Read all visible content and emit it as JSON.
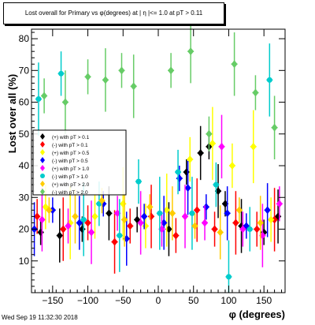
{
  "title": "Lost overall for Primary vs φ(degrees) at | η |<= 1.0 at pT > 0.11",
  "timestamp": "Wed Sep 19 11:32:30 2018",
  "chart_data": {
    "type": "scatter",
    "xlabel": "φ (degrees)",
    "ylabel": "Lost over all (%)",
    "xlim": [
      -180,
      180
    ],
    "ylim": [
      0,
      83
    ],
    "x_ticks": [
      -150,
      -100,
      -50,
      0,
      50,
      100,
      150
    ],
    "y_ticks": [
      10,
      20,
      30,
      40,
      50,
      60,
      70,
      80
    ],
    "grid": false,
    "legend_position": "left",
    "series": [
      {
        "name": "(+) with pT > 0.1",
        "color": "#000000",
        "marker": "diamond",
        "x": [
          -167,
          -140,
          -108,
          -70,
          -30,
          15,
          40,
          60,
          72,
          85,
          95,
          118,
          150,
          170
        ],
        "y": [
          19,
          18,
          20,
          25,
          23,
          20,
          38,
          44,
          46,
          32,
          28,
          21,
          19,
          24
        ]
      },
      {
        "name": "(-) with pT > 0.1",
        "color": "#ff0000",
        "marker": "diamond",
        "x": [
          -172,
          -135,
          -100,
          -62,
          -40,
          -10,
          25,
          55,
          80,
          110,
          140,
          165
        ],
        "y": [
          24,
          20,
          22,
          16,
          21,
          24,
          18,
          26,
          20,
          22,
          20,
          23
        ]
      },
      {
        "name": "(+) with pT > 0.5",
        "color": "#ffff00",
        "marker": "diamond",
        "x": [
          -160,
          -125,
          -90,
          -50,
          -18,
          12,
          45,
          77,
          105,
          135,
          160
        ],
        "y": [
          27,
          22,
          24,
          28,
          21,
          26,
          42,
          47,
          40,
          46,
          23
        ]
      },
      {
        "name": "(-) with pT > 0.5",
        "color": "#0000ff",
        "marker": "diamond",
        "x": [
          -176,
          -150,
          -112,
          -78,
          -45,
          -20,
          8,
          30,
          42,
          68,
          98,
          125,
          155
        ],
        "y": [
          20,
          26,
          22,
          28,
          17,
          24,
          22,
          36,
          33,
          27,
          25,
          21,
          26
        ]
      },
      {
        "name": "(+) with pT > 1.0",
        "color": "#ff00ff",
        "marker": "diamond",
        "x": [
          -165,
          -128,
          -95,
          -58,
          -25,
          5,
          38,
          66,
          90,
          120,
          148,
          172
        ],
        "y": [
          23,
          21,
          19,
          25,
          22,
          20,
          24,
          22,
          46,
          20,
          18,
          28
        ]
      },
      {
        "name": "(-) with pT > 1.0",
        "color": "#00cccc",
        "marker": "circle",
        "x": [
          -170,
          -138,
          -106,
          -84,
          -55,
          -28,
          2,
          28,
          48,
          82,
          100,
          130,
          158
        ],
        "y": [
          61,
          69,
          23,
          28,
          18,
          35,
          25,
          38,
          25,
          34,
          5,
          20,
          67
        ]
      },
      {
        "name": "(+) with pT > 2.0",
        "color": "#ffcc00",
        "marker": "diamond",
        "x": [
          -155,
          -118,
          -80,
          -48,
          -12,
          20,
          52,
          88,
          115,
          145
        ],
        "y": [
          26,
          24,
          29,
          23,
          27,
          25,
          21,
          19,
          26,
          22
        ]
      },
      {
        "name": "(-) with pT > 2.0",
        "color": "#66cc66",
        "marker": "diamond",
        "x": [
          -162,
          -132,
          -100,
          -75,
          -52,
          -35,
          18,
          46,
          72,
          108,
          138,
          165
        ],
        "y": [
          62,
          60,
          68,
          67,
          70,
          65,
          70,
          76,
          50,
          72,
          63,
          52
        ]
      }
    ]
  }
}
